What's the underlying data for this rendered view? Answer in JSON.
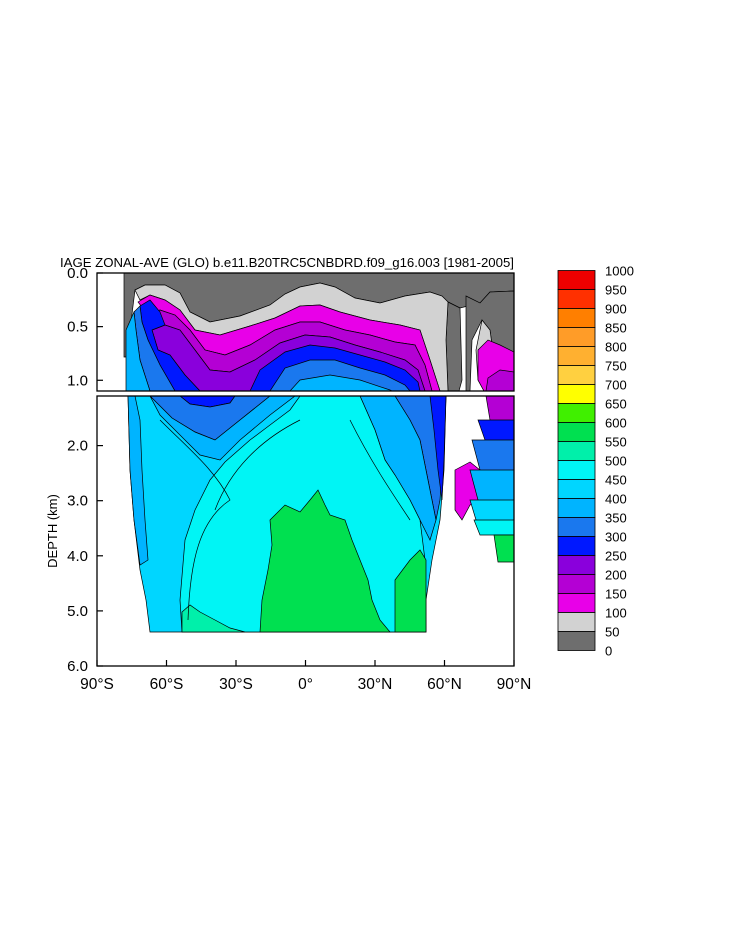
{
  "chart_data": {
    "type": "contour",
    "title": "IAGE ZONAL-AVE (GLO) b.e11.B20TRC5CNBDRD.f09_g16.003 [1981-2005]",
    "xlabel": "",
    "ylabel": "DEPTH (km)",
    "xlim": [
      -90,
      90
    ],
    "ylim": [
      0.0,
      6.0
    ],
    "x_ticks": [
      {
        "value": -90,
        "label": "90°S"
      },
      {
        "value": -60,
        "label": "60°S"
      },
      {
        "value": -30,
        "label": "30°S"
      },
      {
        "value": 0,
        "label": "0°"
      },
      {
        "value": 30,
        "label": "30°N"
      },
      {
        "value": 60,
        "label": "60°N"
      },
      {
        "value": 90,
        "label": "90°N"
      }
    ],
    "y_ticks_upper": [
      {
        "value": 0.0,
        "label": "0.0"
      },
      {
        "value": 0.5,
        "label": "0.5"
      },
      {
        "value": 1.0,
        "label": "1.0"
      }
    ],
    "y_ticks_lower": [
      {
        "value": 2.0,
        "label": "2.0"
      },
      {
        "value": 3.0,
        "label": "3.0"
      },
      {
        "value": 4.0,
        "label": "4.0"
      },
      {
        "value": 5.0,
        "label": "5.0"
      },
      {
        "value": 6.0,
        "label": "6.0"
      }
    ],
    "panel_break_depth": 1.1,
    "levels": [
      {
        "value": 0,
        "color": "#6e6e6e"
      },
      {
        "value": 50,
        "color": "#d2d2d2"
      },
      {
        "value": 100,
        "color": "#e800e8"
      },
      {
        "value": 150,
        "color": "#b400d4"
      },
      {
        "value": 200,
        "color": "#8a00dc"
      },
      {
        "value": 250,
        "color": "#0018ff"
      },
      {
        "value": 300,
        "color": "#1a78ee"
      },
      {
        "value": 350,
        "color": "#00b4ff"
      },
      {
        "value": 400,
        "color": "#00d6ff"
      },
      {
        "value": 450,
        "color": "#00f5f5"
      },
      {
        "value": 500,
        "color": "#00f0aa"
      },
      {
        "value": 550,
        "color": "#00e050"
      },
      {
        "value": 600,
        "color": "#40f000"
      },
      {
        "value": 650,
        "color": "#ffff00"
      },
      {
        "value": 700,
        "color": "#ffd040"
      },
      {
        "value": 750,
        "color": "#ffb030"
      },
      {
        "value": 800,
        "color": "#ff9c28"
      },
      {
        "value": 850,
        "color": "#ff7f00"
      },
      {
        "value": 900,
        "color": "#ff3000"
      },
      {
        "value": 950,
        "color": "#ee0000"
      },
      {
        "value": 1000,
        "color": "#c00000"
      }
    ],
    "colorbar_labels": [
      "1000",
      "950",
      "900",
      "850",
      "800",
      "750",
      "700",
      "650",
      "600",
      "550",
      "500",
      "450",
      "400",
      "350",
      "300",
      "250",
      "200",
      "150",
      "100",
      "50",
      "0"
    ]
  }
}
